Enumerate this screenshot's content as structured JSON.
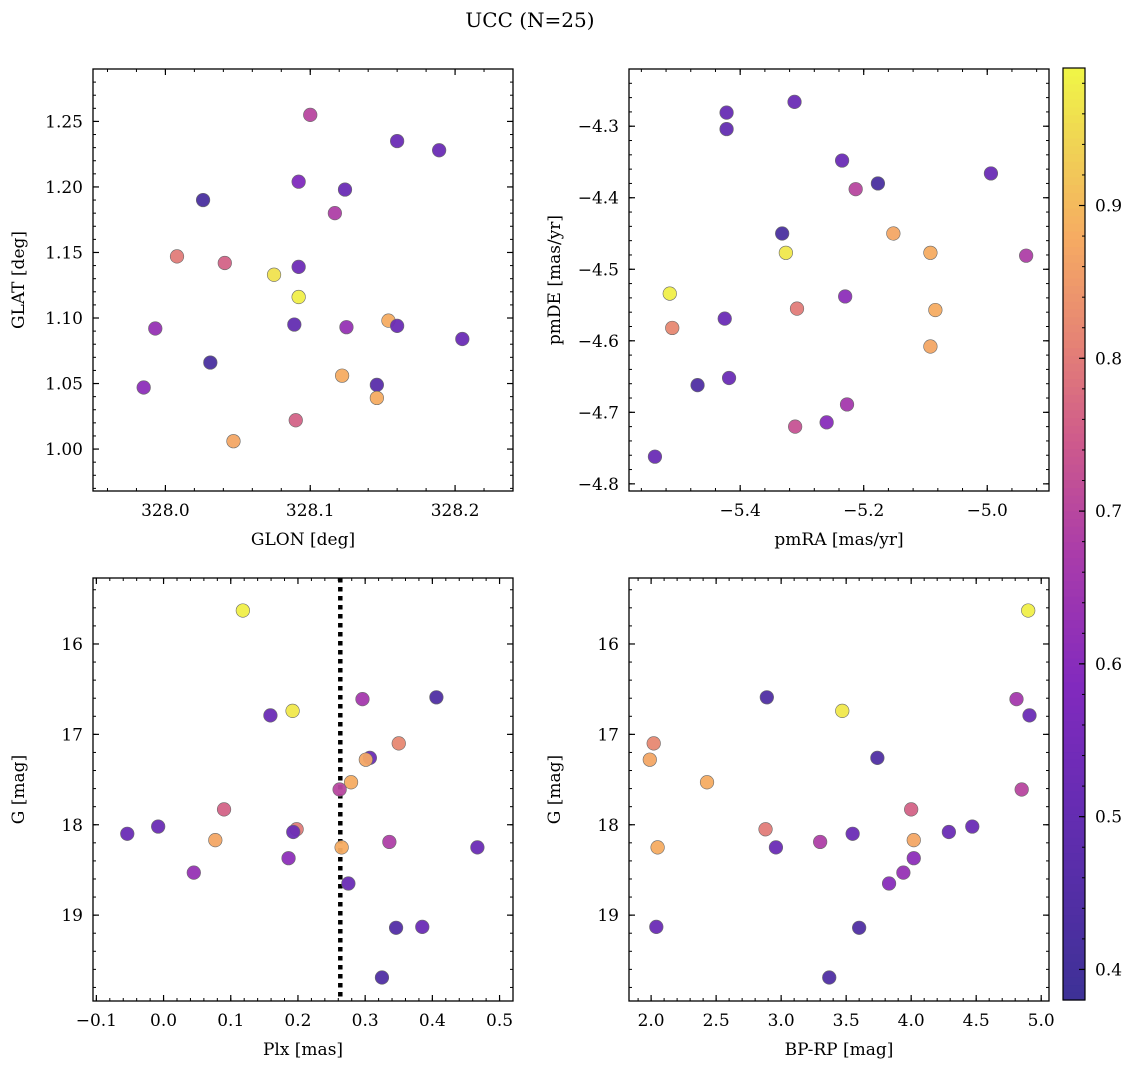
{
  "figure": {
    "title": "UCC (N=25)"
  },
  "colorbar": {
    "cmap": "plasma",
    "range": [
      0.38,
      0.99
    ],
    "ticks": [
      "0.4",
      "0.5",
      "0.6",
      "0.7",
      "0.8",
      "0.9"
    ],
    "tick_values": [
      0.4,
      0.5,
      0.6,
      0.7,
      0.8,
      0.9
    ]
  },
  "chart_data": [
    {
      "type": "scatter",
      "xlabel": "GLON [deg]",
      "ylabel": "GLAT [deg]",
      "xlim": [
        327.95,
        328.24
      ],
      "ylim": [
        0.968,
        1.29
      ],
      "xticks": [
        {
          "v": 328.0,
          "l": "328.0"
        },
        {
          "v": 328.1,
          "l": "328.1"
        },
        {
          "v": 328.2,
          "l": "328.2"
        }
      ],
      "yticks": [
        {
          "v": 1.0,
          "l": "1.00"
        },
        {
          "v": 1.05,
          "l": "1.05"
        },
        {
          "v": 1.1,
          "l": "1.10"
        },
        {
          "v": 1.15,
          "l": "1.15"
        },
        {
          "v": 1.2,
          "l": "1.20"
        },
        {
          "v": 1.25,
          "l": "1.25"
        }
      ],
      "points": [
        {
          "x": 328.1,
          "y": 1.255,
          "c": 0.7
        },
        {
          "x": 328.16,
          "y": 1.235,
          "c": 0.52
        },
        {
          "x": 328.189,
          "y": 1.228,
          "c": 0.52
        },
        {
          "x": 328.092,
          "y": 1.204,
          "c": 0.58
        },
        {
          "x": 328.124,
          "y": 1.198,
          "c": 0.52
        },
        {
          "x": 328.026,
          "y": 1.19,
          "c": 0.42
        },
        {
          "x": 328.117,
          "y": 1.18,
          "c": 0.68
        },
        {
          "x": 328.008,
          "y": 1.147,
          "c": 0.8
        },
        {
          "x": 328.041,
          "y": 1.142,
          "c": 0.76
        },
        {
          "x": 328.092,
          "y": 1.139,
          "c": 0.53
        },
        {
          "x": 328.075,
          "y": 1.133,
          "c": 0.96
        },
        {
          "x": 328.092,
          "y": 1.116,
          "c": 0.98
        },
        {
          "x": 328.154,
          "y": 1.098,
          "c": 0.88
        },
        {
          "x": 328.089,
          "y": 1.095,
          "c": 0.5
        },
        {
          "x": 328.16,
          "y": 1.094,
          "c": 0.52
        },
        {
          "x": 328.125,
          "y": 1.093,
          "c": 0.63
        },
        {
          "x": 327.993,
          "y": 1.092,
          "c": 0.63
        },
        {
          "x": 328.205,
          "y": 1.084,
          "c": 0.52
        },
        {
          "x": 328.031,
          "y": 1.066,
          "c": 0.42
        },
        {
          "x": 328.122,
          "y": 1.056,
          "c": 0.88
        },
        {
          "x": 328.146,
          "y": 1.049,
          "c": 0.47
        },
        {
          "x": 327.985,
          "y": 1.047,
          "c": 0.61
        },
        {
          "x": 328.146,
          "y": 1.039,
          "c": 0.88
        },
        {
          "x": 328.09,
          "y": 1.022,
          "c": 0.76
        },
        {
          "x": 328.047,
          "y": 1.006,
          "c": 0.87
        }
      ]
    },
    {
      "type": "scatter",
      "xlabel": "pmRA [mas/yr]",
      "ylabel": "pmDE [mas/yr]",
      "xlim": [
        -5.58,
        -4.9
      ],
      "ylim": [
        -4.81,
        -4.22
      ],
      "xticks": [
        {
          "v": -5.4,
          "l": "−5.4"
        },
        {
          "v": -5.2,
          "l": "−5.2"
        },
        {
          "v": -5.0,
          "l": "−5.0"
        }
      ],
      "yticks": [
        {
          "v": -4.8,
          "l": "−4.8"
        },
        {
          "v": -4.7,
          "l": "−4.7"
        },
        {
          "v": -4.6,
          "l": "−4.6"
        },
        {
          "v": -4.5,
          "l": "−4.5"
        },
        {
          "v": -4.4,
          "l": "−4.4"
        },
        {
          "v": -4.3,
          "l": "−4.3"
        }
      ],
      "points": [
        {
          "x": -5.312,
          "y": -4.266,
          "c": 0.52
        },
        {
          "x": -5.422,
          "y": -4.281,
          "c": 0.51
        },
        {
          "x": -5.422,
          "y": -4.304,
          "c": 0.5
        },
        {
          "x": -5.235,
          "y": -4.348,
          "c": 0.52
        },
        {
          "x": -4.994,
          "y": -4.366,
          "c": 0.52
        },
        {
          "x": -5.177,
          "y": -4.38,
          "c": 0.42
        },
        {
          "x": -5.213,
          "y": -4.388,
          "c": 0.7
        },
        {
          "x": -5.332,
          "y": -4.45,
          "c": 0.42
        },
        {
          "x": -5.152,
          "y": -4.45,
          "c": 0.87
        },
        {
          "x": -5.326,
          "y": -4.477,
          "c": 0.97
        },
        {
          "x": -5.092,
          "y": -4.477,
          "c": 0.88
        },
        {
          "x": -4.937,
          "y": -4.481,
          "c": 0.68
        },
        {
          "x": -5.514,
          "y": -4.534,
          "c": 0.98
        },
        {
          "x": -5.23,
          "y": -4.538,
          "c": 0.61
        },
        {
          "x": -5.308,
          "y": -4.555,
          "c": 0.8
        },
        {
          "x": -5.084,
          "y": -4.557,
          "c": 0.88
        },
        {
          "x": -5.425,
          "y": -4.569,
          "c": 0.52
        },
        {
          "x": -5.51,
          "y": -4.582,
          "c": 0.82
        },
        {
          "x": -5.092,
          "y": -4.608,
          "c": 0.87
        },
        {
          "x": -5.418,
          "y": -4.652,
          "c": 0.52
        },
        {
          "x": -5.469,
          "y": -4.662,
          "c": 0.44
        },
        {
          "x": -5.227,
          "y": -4.689,
          "c": 0.66
        },
        {
          "x": -5.26,
          "y": -4.714,
          "c": 0.6
        },
        {
          "x": -5.311,
          "y": -4.72,
          "c": 0.73
        },
        {
          "x": -5.538,
          "y": -4.762,
          "c": 0.52
        }
      ]
    },
    {
      "type": "scatter",
      "xlabel": "Plx [mas]",
      "ylabel": "G [mag]",
      "xlim": [
        -0.105,
        0.52
      ],
      "ylim": [
        19.95,
        15.27
      ],
      "y_inverted": true,
      "vline": 0.263,
      "xticks": [
        {
          "v": -0.1,
          "l": "−0.1"
        },
        {
          "v": 0.0,
          "l": "0.0"
        },
        {
          "v": 0.1,
          "l": "0.1"
        },
        {
          "v": 0.2,
          "l": "0.2"
        },
        {
          "v": 0.3,
          "l": "0.3"
        },
        {
          "v": 0.4,
          "l": "0.4"
        },
        {
          "v": 0.5,
          "l": "0.5"
        }
      ],
      "yticks": [
        {
          "v": 16,
          "l": "16"
        },
        {
          "v": 17,
          "l": "17"
        },
        {
          "v": 18,
          "l": "18"
        },
        {
          "v": 19,
          "l": "19"
        }
      ],
      "points": [
        {
          "x": 0.118,
          "y": 15.63,
          "c": 0.98
        },
        {
          "x": 0.406,
          "y": 16.59,
          "c": 0.44
        },
        {
          "x": 0.296,
          "y": 16.61,
          "c": 0.66
        },
        {
          "x": 0.192,
          "y": 16.74,
          "c": 0.97
        },
        {
          "x": 0.159,
          "y": 16.79,
          "c": 0.52
        },
        {
          "x": 0.35,
          "y": 17.1,
          "c": 0.82
        },
        {
          "x": 0.307,
          "y": 17.26,
          "c": 0.52
        },
        {
          "x": 0.301,
          "y": 17.28,
          "c": 0.87
        },
        {
          "x": 0.279,
          "y": 17.53,
          "c": 0.88
        },
        {
          "x": 0.262,
          "y": 17.61,
          "c": 0.7
        },
        {
          "x": 0.09,
          "y": 17.83,
          "c": 0.76
        },
        {
          "x": -0.008,
          "y": 18.02,
          "c": 0.52
        },
        {
          "x": 0.198,
          "y": 18.05,
          "c": 0.8
        },
        {
          "x": 0.193,
          "y": 18.08,
          "c": 0.52
        },
        {
          "x": -0.054,
          "y": 18.1,
          "c": 0.52
        },
        {
          "x": 0.077,
          "y": 18.17,
          "c": 0.87
        },
        {
          "x": 0.336,
          "y": 18.19,
          "c": 0.68
        },
        {
          "x": 0.265,
          "y": 18.25,
          "c": 0.88
        },
        {
          "x": 0.467,
          "y": 18.25,
          "c": 0.52
        },
        {
          "x": 0.186,
          "y": 18.37,
          "c": 0.61
        },
        {
          "x": 0.045,
          "y": 18.53,
          "c": 0.63
        },
        {
          "x": 0.275,
          "y": 18.65,
          "c": 0.52
        },
        {
          "x": 0.385,
          "y": 19.13,
          "c": 0.52
        },
        {
          "x": 0.346,
          "y": 19.14,
          "c": 0.45
        },
        {
          "x": 0.325,
          "y": 19.69,
          "c": 0.44
        }
      ]
    },
    {
      "type": "scatter",
      "xlabel": "BP-RP [mag]",
      "ylabel": "G [mag]",
      "xlim": [
        1.83,
        5.06
      ],
      "ylim": [
        19.95,
        15.27
      ],
      "y_inverted": true,
      "xticks": [
        {
          "v": 2.0,
          "l": "2.0"
        },
        {
          "v": 2.5,
          "l": "2.5"
        },
        {
          "v": 3.0,
          "l": "3.0"
        },
        {
          "v": 3.5,
          "l": "3.5"
        },
        {
          "v": 4.0,
          "l": "4.0"
        },
        {
          "v": 4.5,
          "l": "4.5"
        },
        {
          "v": 5.0,
          "l": "5.0"
        }
      ],
      "yticks": [
        {
          "v": 16,
          "l": "16"
        },
        {
          "v": 17,
          "l": "17"
        },
        {
          "v": 18,
          "l": "18"
        },
        {
          "v": 19,
          "l": "19"
        }
      ],
      "points": [
        {
          "x": 4.9,
          "y": 15.63,
          "c": 0.98
        },
        {
          "x": 2.89,
          "y": 16.59,
          "c": 0.44
        },
        {
          "x": 4.81,
          "y": 16.61,
          "c": 0.66
        },
        {
          "x": 3.47,
          "y": 16.74,
          "c": 0.97
        },
        {
          "x": 4.91,
          "y": 16.79,
          "c": 0.52
        },
        {
          "x": 2.02,
          "y": 17.1,
          "c": 0.82
        },
        {
          "x": 3.74,
          "y": 17.26,
          "c": 0.44
        },
        {
          "x": 1.99,
          "y": 17.28,
          "c": 0.87
        },
        {
          "x": 2.43,
          "y": 17.53,
          "c": 0.88
        },
        {
          "x": 4.85,
          "y": 17.61,
          "c": 0.7
        },
        {
          "x": 4.0,
          "y": 17.83,
          "c": 0.76
        },
        {
          "x": 4.47,
          "y": 18.02,
          "c": 0.52
        },
        {
          "x": 2.88,
          "y": 18.05,
          "c": 0.8
        },
        {
          "x": 4.29,
          "y": 18.08,
          "c": 0.52
        },
        {
          "x": 3.55,
          "y": 18.1,
          "c": 0.52
        },
        {
          "x": 4.02,
          "y": 18.17,
          "c": 0.87
        },
        {
          "x": 3.3,
          "y": 18.19,
          "c": 0.68
        },
        {
          "x": 2.05,
          "y": 18.25,
          "c": 0.88
        },
        {
          "x": 2.96,
          "y": 18.25,
          "c": 0.52
        },
        {
          "x": 4.02,
          "y": 18.37,
          "c": 0.61
        },
        {
          "x": 3.94,
          "y": 18.53,
          "c": 0.63
        },
        {
          "x": 3.83,
          "y": 18.65,
          "c": 0.6
        },
        {
          "x": 2.04,
          "y": 19.13,
          "c": 0.52
        },
        {
          "x": 3.6,
          "y": 19.14,
          "c": 0.44
        },
        {
          "x": 3.37,
          "y": 19.69,
          "c": 0.44
        }
      ]
    }
  ]
}
